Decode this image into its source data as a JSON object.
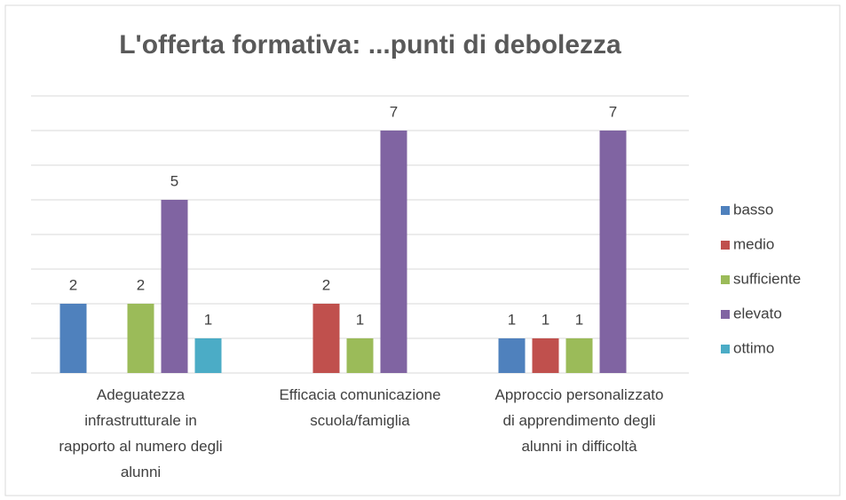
{
  "chart_data": {
    "type": "bar",
    "title": "L'offerta formativa: ...punti di debolezza",
    "categories": [
      "Adeguatezza infrastrutturale in rapporto al numero degli alunni",
      "Efficacia comunicazione scuola/famiglia",
      "Approccio personalizzato di apprendimento degli alunni in difficoltà"
    ],
    "series": [
      {
        "name": "basso",
        "color": "#4f81bd",
        "values": [
          2,
          0,
          1
        ]
      },
      {
        "name": "medio",
        "color": "#c0504d",
        "values": [
          0,
          2,
          1
        ]
      },
      {
        "name": "sufficiente",
        "color": "#9bbb59",
        "values": [
          2,
          1,
          1
        ]
      },
      {
        "name": "elevato",
        "color": "#8064a2",
        "values": [
          5,
          7,
          7
        ]
      },
      {
        "name": "ottimo",
        "color": "#4bacc6",
        "values": [
          1,
          0,
          0
        ]
      }
    ],
    "ylim": [
      0,
      8
    ],
    "yticks": [
      0,
      1,
      2,
      3,
      4,
      5,
      6,
      7,
      8
    ],
    "grid": true,
    "legend": "right"
  }
}
